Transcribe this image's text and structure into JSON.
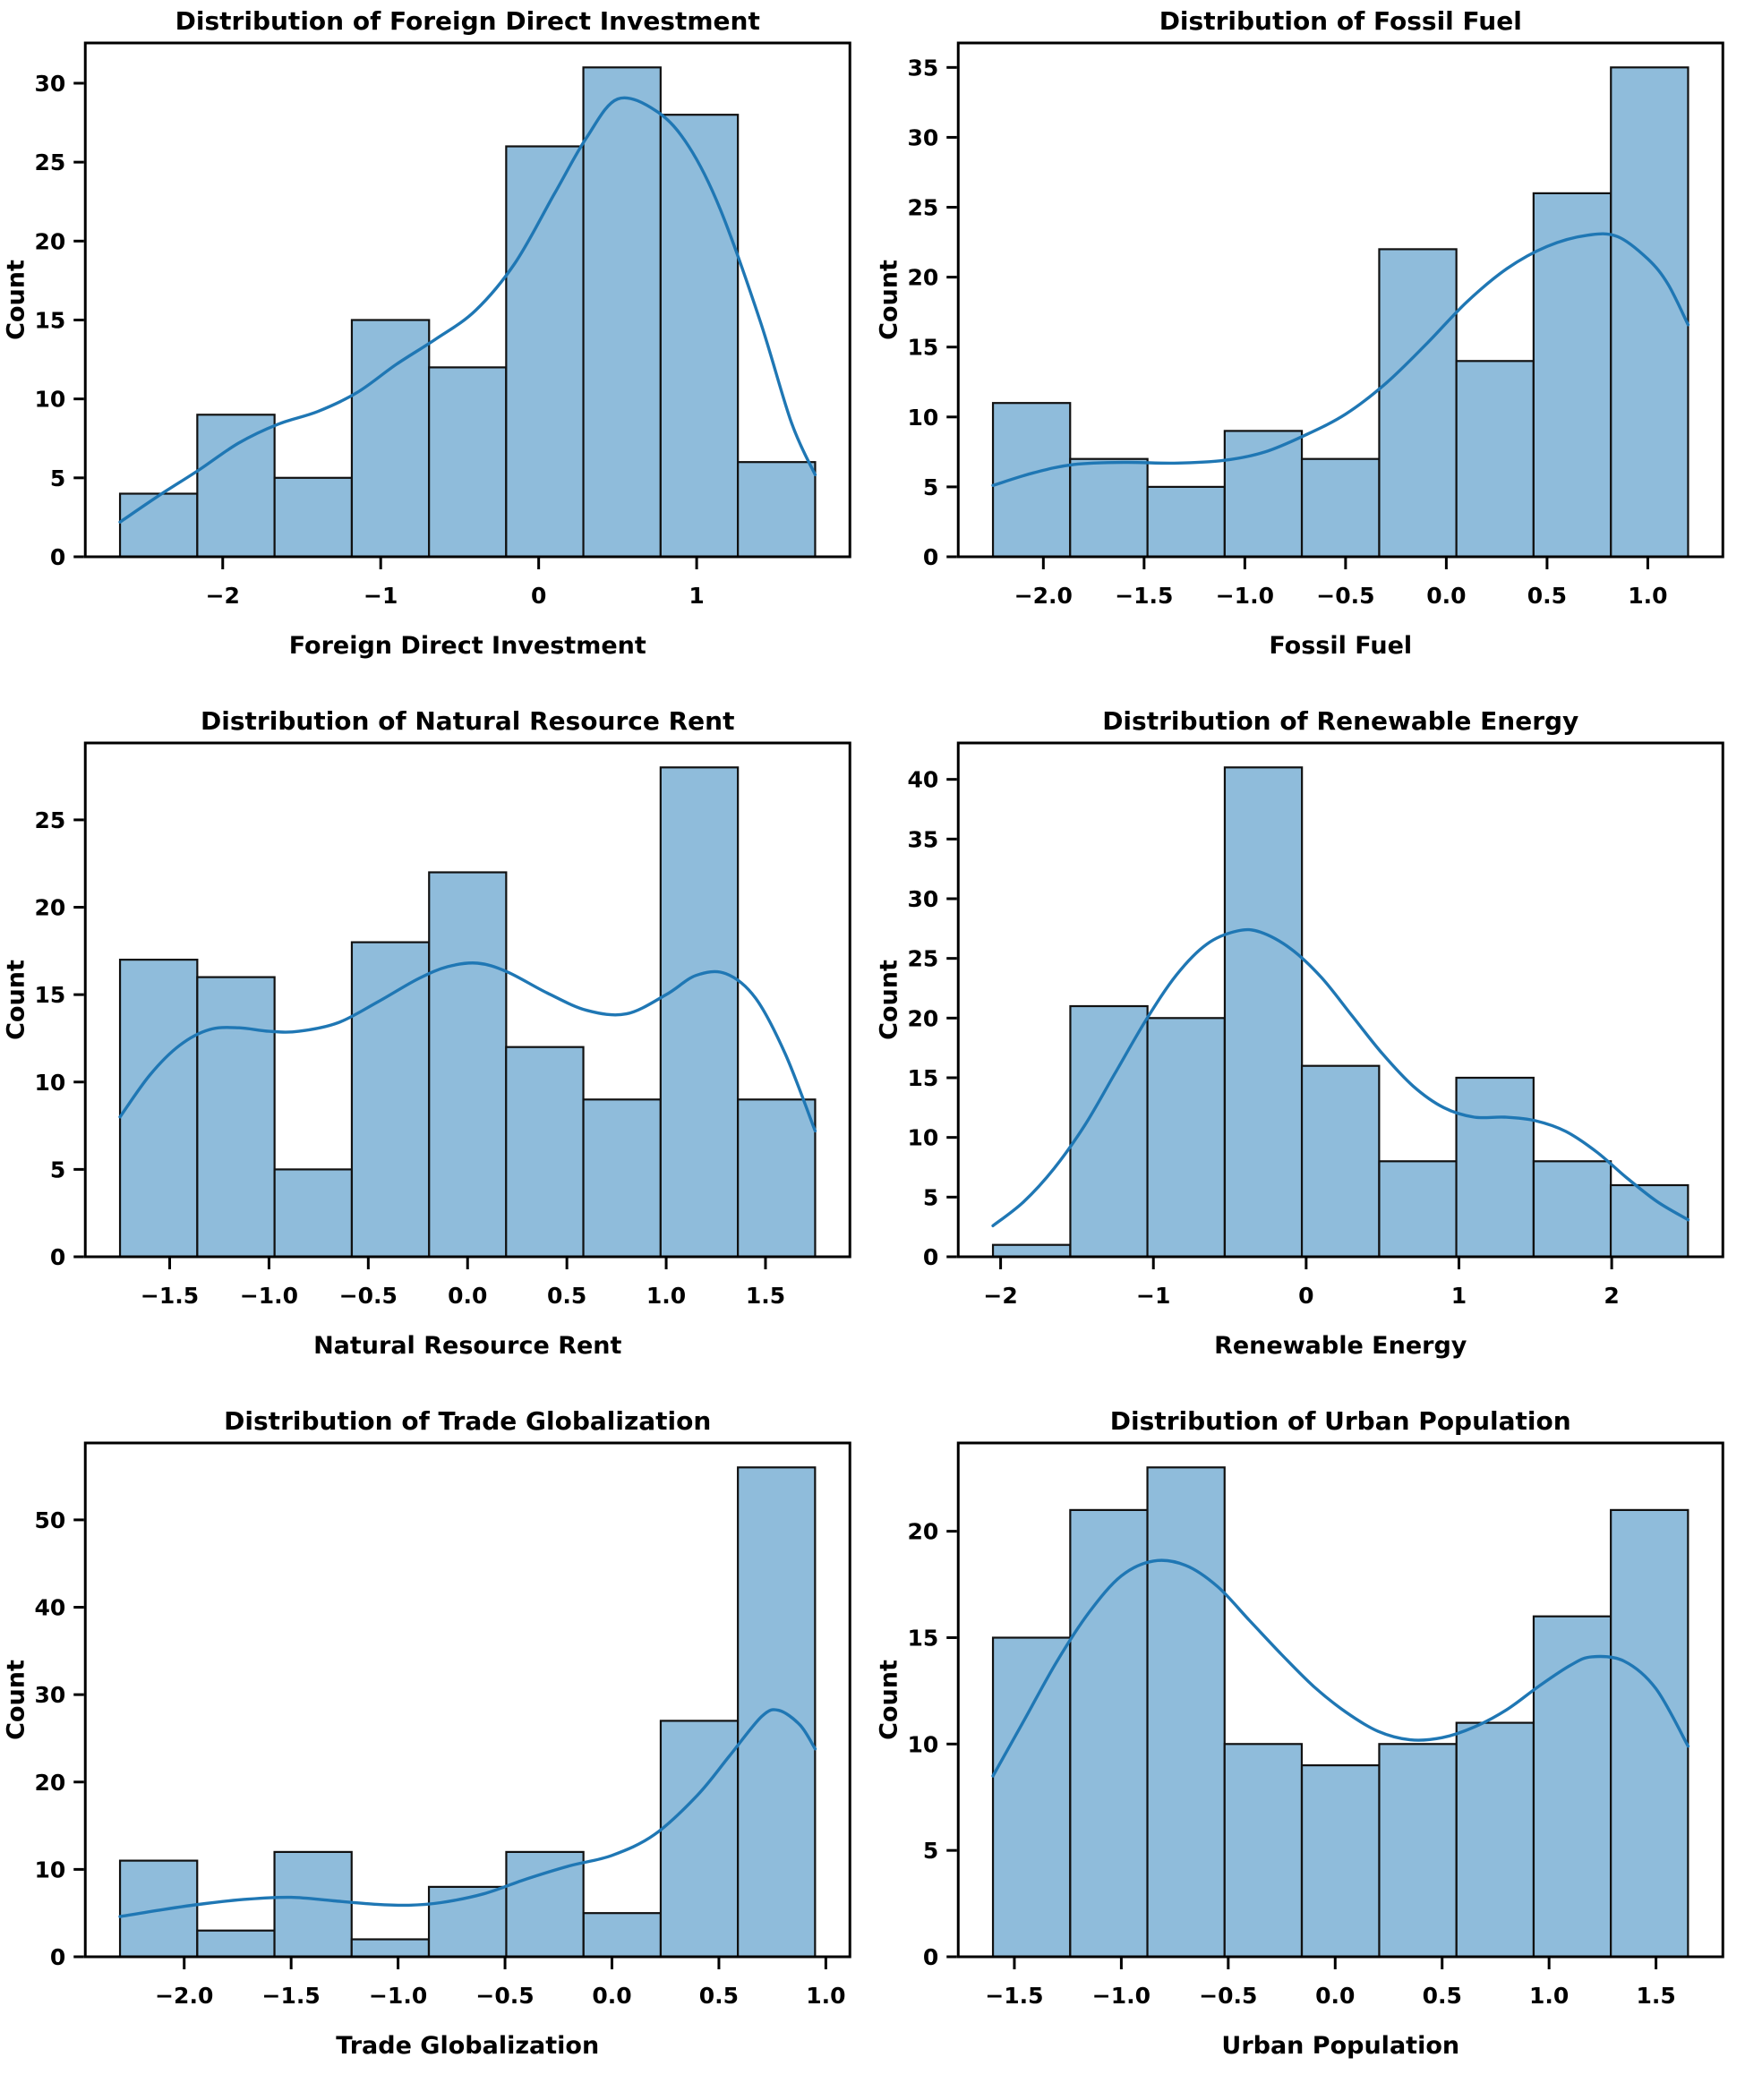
{
  "figure": {
    "background": "#ffffff",
    "rows": 3,
    "cols": 2
  },
  "style": {
    "bar_fill": "#8FBCDB",
    "bar_edge": "#111111",
    "kde_color": "#1F77B4",
    "spine_color": "#000000",
    "text_color": "#000000"
  },
  "chart_data": [
    {
      "id": "foreign-direct-investment",
      "type": "histogram",
      "title": "Distribution of Foreign Direct Investment",
      "xlabel": "Foreign Direct Investment",
      "ylabel": "Count",
      "grid": false,
      "legend": false,
      "bin_edges": [
        -2.65,
        -2.161,
        -1.672,
        -1.183,
        -0.694,
        -0.206,
        0.283,
        0.772,
        1.261,
        1.75
      ],
      "counts": [
        4,
        9,
        5,
        15,
        12,
        26,
        31,
        28,
        6
      ],
      "xlim": [
        -2.87,
        1.97
      ],
      "ylim": [
        0,
        32.55
      ],
      "xtick_values": [
        -2,
        -1,
        0,
        1
      ],
      "xtick_labels": [
        "−2",
        "−1",
        "0",
        "1"
      ],
      "ytick_values": [
        0,
        5,
        10,
        15,
        20,
        25,
        30
      ],
      "kde": [
        [
          -2.65,
          2.2
        ],
        [
          -2.4,
          3.9
        ],
        [
          -2.15,
          5.5
        ],
        [
          -1.9,
          7.2
        ],
        [
          -1.65,
          8.4
        ],
        [
          -1.4,
          9.2
        ],
        [
          -1.15,
          10.4
        ],
        [
          -0.9,
          12.2
        ],
        [
          -0.65,
          13.8
        ],
        [
          -0.4,
          15.6
        ],
        [
          -0.15,
          18.6
        ],
        [
          0.1,
          23.0
        ],
        [
          0.3,
          26.5
        ],
        [
          0.5,
          29.0
        ],
        [
          0.75,
          28.2
        ],
        [
          0.95,
          26.0
        ],
        [
          1.15,
          22.0
        ],
        [
          1.4,
          15.0
        ],
        [
          1.6,
          8.5
        ],
        [
          1.75,
          5.2
        ]
      ]
    },
    {
      "id": "fossil-fuel",
      "type": "histogram",
      "title": "Distribution of Fossil Fuel",
      "xlabel": "Fossil Fuel",
      "ylabel": "Count",
      "grid": false,
      "legend": false,
      "bin_edges": [
        -2.25,
        -1.867,
        -1.483,
        -1.1,
        -0.717,
        -0.333,
        0.05,
        0.433,
        0.817,
        1.2
      ],
      "counts": [
        11,
        7,
        5,
        9,
        7,
        22,
        14,
        26,
        35
      ],
      "xlim": [
        -2.4225,
        1.3725
      ],
      "ylim": [
        0,
        36.75
      ],
      "xtick_values": [
        -2.0,
        -1.5,
        -1.0,
        -0.5,
        0.0,
        0.5,
        1.0
      ],
      "xtick_labels": [
        "−2.0",
        "−1.5",
        "−1.0",
        "−0.5",
        "0.0",
        "0.5",
        "1.0"
      ],
      "ytick_values": [
        0,
        5,
        10,
        15,
        20,
        25,
        30,
        35
      ],
      "kde": [
        [
          -2.25,
          5.1
        ],
        [
          -2.05,
          6.0
        ],
        [
          -1.85,
          6.6
        ],
        [
          -1.6,
          6.75
        ],
        [
          -1.35,
          6.7
        ],
        [
          -1.1,
          6.9
        ],
        [
          -0.9,
          7.5
        ],
        [
          -0.7,
          8.7
        ],
        [
          -0.5,
          10.2
        ],
        [
          -0.3,
          12.4
        ],
        [
          -0.1,
          15.2
        ],
        [
          0.1,
          18.2
        ],
        [
          0.3,
          20.6
        ],
        [
          0.5,
          22.2
        ],
        [
          0.7,
          23.0
        ],
        [
          0.85,
          22.9
        ],
        [
          1.0,
          21.3
        ],
        [
          1.1,
          19.5
        ],
        [
          1.2,
          16.6
        ]
      ]
    },
    {
      "id": "natural-resource-rent",
      "type": "histogram",
      "title": "Distribution of Natural Resource Rent",
      "xlabel": "Natural Resource Rent",
      "ylabel": "Count",
      "grid": false,
      "legend": false,
      "bin_edges": [
        -1.75,
        -1.361,
        -0.972,
        -0.583,
        -0.194,
        0.194,
        0.583,
        0.972,
        1.361,
        1.75
      ],
      "counts": [
        17,
        16,
        5,
        18,
        22,
        12,
        9,
        28,
        9
      ],
      "xlim": [
        -1.925,
        1.925
      ],
      "ylim": [
        0,
        29.4
      ],
      "xtick_values": [
        -1.5,
        -1.0,
        -0.5,
        0.0,
        0.5,
        1.0,
        1.5
      ],
      "xtick_labels": [
        "−1.5",
        "−1.0",
        "−0.5",
        "0.0",
        "0.5",
        "1.0",
        "1.5"
      ],
      "ytick_values": [
        0,
        5,
        10,
        15,
        20,
        25
      ],
      "kde": [
        [
          -1.75,
          8.0
        ],
        [
          -1.6,
          10.4
        ],
        [
          -1.45,
          12.1
        ],
        [
          -1.3,
          13.0
        ],
        [
          -1.15,
          13.1
        ],
        [
          -1.0,
          12.9
        ],
        [
          -0.85,
          12.9
        ],
        [
          -0.65,
          13.4
        ],
        [
          -0.45,
          14.6
        ],
        [
          -0.25,
          15.9
        ],
        [
          -0.1,
          16.6
        ],
        [
          0.05,
          16.8
        ],
        [
          0.2,
          16.3
        ],
        [
          0.4,
          15.1
        ],
        [
          0.6,
          14.1
        ],
        [
          0.8,
          13.9
        ],
        [
          1.0,
          15.0
        ],
        [
          1.15,
          16.1
        ],
        [
          1.3,
          16.2
        ],
        [
          1.45,
          14.8
        ],
        [
          1.6,
          11.6
        ],
        [
          1.75,
          7.2
        ]
      ]
    },
    {
      "id": "renewable-energy",
      "type": "histogram",
      "title": "Distribution of Renewable Energy",
      "xlabel": "Renewable Energy",
      "ylabel": "Count",
      "grid": false,
      "legend": false,
      "bin_edges": [
        -2.05,
        -1.544,
        -1.039,
        -0.533,
        -0.028,
        0.478,
        0.983,
        1.489,
        1.994,
        2.5
      ],
      "counts": [
        1,
        21,
        20,
        41,
        16,
        8,
        15,
        8,
        6
      ],
      "xlim": [
        -2.2775,
        2.7275
      ],
      "ylim": [
        0,
        43.05
      ],
      "xtick_values": [
        -2,
        -1,
        0,
        1,
        2
      ],
      "xtick_labels": [
        "−2",
        "−1",
        "0",
        "1",
        "2"
      ],
      "ytick_values": [
        0,
        5,
        10,
        15,
        20,
        25,
        30,
        35,
        40
      ],
      "kde": [
        [
          -2.05,
          2.6
        ],
        [
          -1.85,
          4.6
        ],
        [
          -1.65,
          7.4
        ],
        [
          -1.45,
          11.0
        ],
        [
          -1.25,
          15.4
        ],
        [
          -1.05,
          19.8
        ],
        [
          -0.85,
          23.6
        ],
        [
          -0.65,
          26.2
        ],
        [
          -0.45,
          27.3
        ],
        [
          -0.3,
          27.2
        ],
        [
          -0.1,
          25.8
        ],
        [
          0.1,
          23.4
        ],
        [
          0.3,
          20.2
        ],
        [
          0.5,
          17.0
        ],
        [
          0.7,
          14.3
        ],
        [
          0.9,
          12.5
        ],
        [
          1.1,
          11.7
        ],
        [
          1.3,
          11.7
        ],
        [
          1.5,
          11.4
        ],
        [
          1.7,
          10.5
        ],
        [
          1.9,
          8.8
        ],
        [
          2.1,
          6.6
        ],
        [
          2.3,
          4.6
        ],
        [
          2.5,
          3.1
        ]
      ]
    },
    {
      "id": "trade-globalization",
      "type": "histogram",
      "title": "Distribution of Trade Globalization",
      "xlabel": "Trade Globalization",
      "ylabel": "Count",
      "grid": false,
      "legend": false,
      "bin_edges": [
        -2.3,
        -1.939,
        -1.578,
        -1.217,
        -0.856,
        -0.494,
        -0.133,
        0.228,
        0.589,
        0.95
      ],
      "counts": [
        11,
        3,
        12,
        2,
        8,
        12,
        5,
        27,
        56
      ],
      "xlim": [
        -2.4625,
        1.1125
      ],
      "ylim": [
        0,
        58.8
      ],
      "xtick_values": [
        -2.0,
        -1.5,
        -1.0,
        -0.5,
        0.0,
        0.5,
        1.0
      ],
      "xtick_labels": [
        "−2.0",
        "−1.5",
        "−1.0",
        "−0.5",
        "0.0",
        "0.5",
        "1.0"
      ],
      "ytick_values": [
        0,
        10,
        20,
        30,
        40,
        50
      ],
      "kde": [
        [
          -2.3,
          4.6
        ],
        [
          -2.1,
          5.4
        ],
        [
          -1.9,
          6.1
        ],
        [
          -1.7,
          6.6
        ],
        [
          -1.5,
          6.8
        ],
        [
          -1.3,
          6.4
        ],
        [
          -1.1,
          6.0
        ],
        [
          -0.95,
          5.9
        ],
        [
          -0.8,
          6.2
        ],
        [
          -0.6,
          7.2
        ],
        [
          -0.4,
          8.9
        ],
        [
          -0.2,
          10.4
        ],
        [
          0.0,
          11.6
        ],
        [
          0.2,
          14.0
        ],
        [
          0.4,
          18.5
        ],
        [
          0.55,
          23.0
        ],
        [
          0.7,
          27.5
        ],
        [
          0.78,
          28.2
        ],
        [
          0.88,
          26.5
        ],
        [
          0.95,
          23.8
        ]
      ]
    },
    {
      "id": "urban-population",
      "type": "histogram",
      "title": "Distribution of Urban Population",
      "xlabel": "Urban Population",
      "ylabel": "Count",
      "grid": false,
      "legend": false,
      "bin_edges": [
        -1.6,
        -1.239,
        -0.878,
        -0.517,
        -0.156,
        0.206,
        0.567,
        0.928,
        1.289,
        1.65
      ],
      "counts": [
        15,
        21,
        23,
        10,
        9,
        10,
        11,
        16,
        21
      ],
      "xlim": [
        -1.7625,
        1.8125
      ],
      "ylim": [
        0,
        24.15
      ],
      "xtick_values": [
        -1.5,
        -1.0,
        -0.5,
        0.0,
        0.5,
        1.0,
        1.5
      ],
      "xtick_labels": [
        "−1.5",
        "−1.0",
        "−0.5",
        "0.0",
        "0.5",
        "1.0",
        "1.5"
      ],
      "ytick_values": [
        0,
        5,
        10,
        15,
        20
      ],
      "kde": [
        [
          -1.6,
          8.5
        ],
        [
          -1.45,
          11.2
        ],
        [
          -1.3,
          13.9
        ],
        [
          -1.15,
          16.2
        ],
        [
          -1.0,
          17.9
        ],
        [
          -0.85,
          18.6
        ],
        [
          -0.7,
          18.4
        ],
        [
          -0.55,
          17.4
        ],
        [
          -0.4,
          15.8
        ],
        [
          -0.25,
          14.2
        ],
        [
          -0.1,
          12.7
        ],
        [
          0.05,
          11.5
        ],
        [
          0.2,
          10.6
        ],
        [
          0.35,
          10.2
        ],
        [
          0.5,
          10.3
        ],
        [
          0.65,
          10.8
        ],
        [
          0.8,
          11.6
        ],
        [
          0.95,
          12.7
        ],
        [
          1.1,
          13.7
        ],
        [
          1.2,
          14.1
        ],
        [
          1.35,
          13.9
        ],
        [
          1.5,
          12.6
        ],
        [
          1.65,
          9.9
        ]
      ]
    }
  ]
}
